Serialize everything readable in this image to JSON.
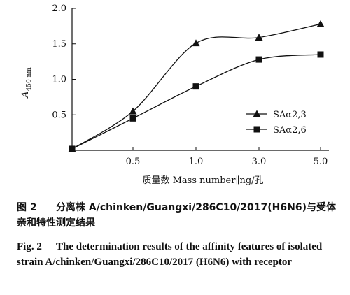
{
  "chart_data": {
    "type": "line",
    "xlabel": "质量数 Mass number∥ng/孔",
    "ylabel_main": "A",
    "ylabel_sub": "450 nm",
    "categories": [
      "",
      "0.5",
      "1.0",
      "3.0",
      "5.0"
    ],
    "ylim": [
      0,
      2.0
    ],
    "yticks": [
      "0",
      "0.5",
      "1.0",
      "1.5",
      "2.0"
    ],
    "grid": false,
    "legend_position": "right",
    "series": [
      {
        "name": "SAα2,3",
        "marker": "triangle",
        "values": [
          0.02,
          0.55,
          1.51,
          1.59,
          1.78
        ]
      },
      {
        "name": "SAα2,6",
        "marker": "square",
        "values": [
          0.02,
          0.45,
          0.9,
          1.28,
          1.35
        ]
      }
    ]
  },
  "caption_zh": {
    "label": "图 2",
    "text": "分离株 A/chinken/Guangxi/286C10/2017(H6N6)与受体亲和特性测定结果"
  },
  "caption_en": {
    "label": "Fig. 2",
    "text": "The determination results of the affinity features of isolated strain A/chinken/Guangxi/286C10/2017 (H6N6) with receptor"
  }
}
